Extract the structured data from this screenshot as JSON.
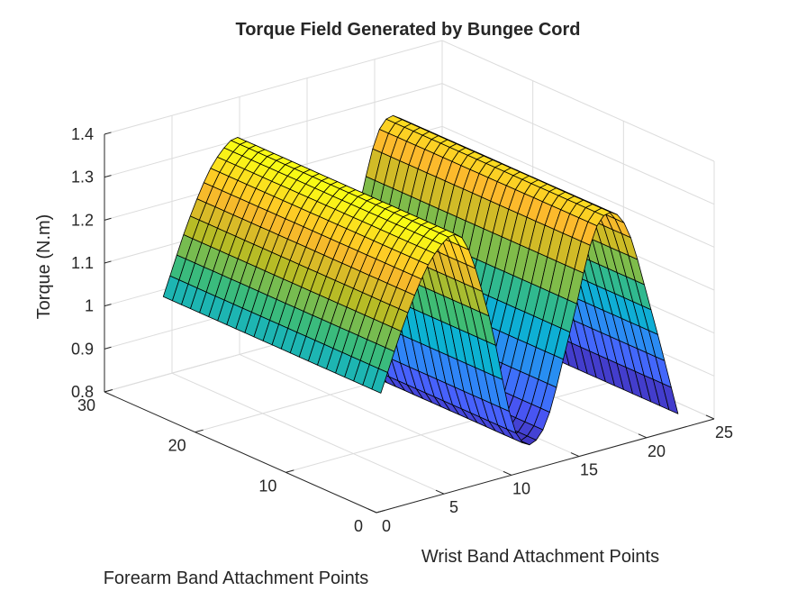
{
  "chart_data": {
    "type": "surface",
    "title": "Torque Field Generated by Bungee Cord",
    "xlabel": "Wrist Band Attachment Points",
    "ylabel": "Forearm Band Attachment Points",
    "zlabel": "Torque (N.m)",
    "xlim": [
      0,
      25
    ],
    "ylim": [
      0,
      30
    ],
    "zlim": [
      0.8,
      1.4
    ],
    "xticks": [
      "0",
      "5",
      "10",
      "15",
      "20",
      "25"
    ],
    "yticks": [
      "0",
      "10",
      "20",
      "30"
    ],
    "zticks": [
      "0.8",
      "0.9",
      "1",
      "1.1",
      "1.2",
      "1.3",
      "1.4"
    ],
    "grid": true,
    "colormap": "parula",
    "colors": [
      "#3e26a8",
      "#4a5cfd",
      "#2e87f7",
      "#0cb2d2",
      "#3fbc73",
      "#bbbc24",
      "#feba2c",
      "#f9fb15"
    ],
    "x_range": [
      1,
      23
    ],
    "y_range": [
      1,
      25
    ],
    "surface_profile": {
      "description_of_values": "Torque varies along x only (constant along y)",
      "x": [
        1,
        3,
        5,
        7,
        9,
        11,
        13,
        15,
        17,
        19,
        21,
        23
      ],
      "z": [
        1.06,
        1.23,
        1.35,
        1.37,
        1.17,
        0.88,
        0.87,
        1.08,
        1.31,
        1.3,
        1.08,
        0.82
      ]
    }
  }
}
